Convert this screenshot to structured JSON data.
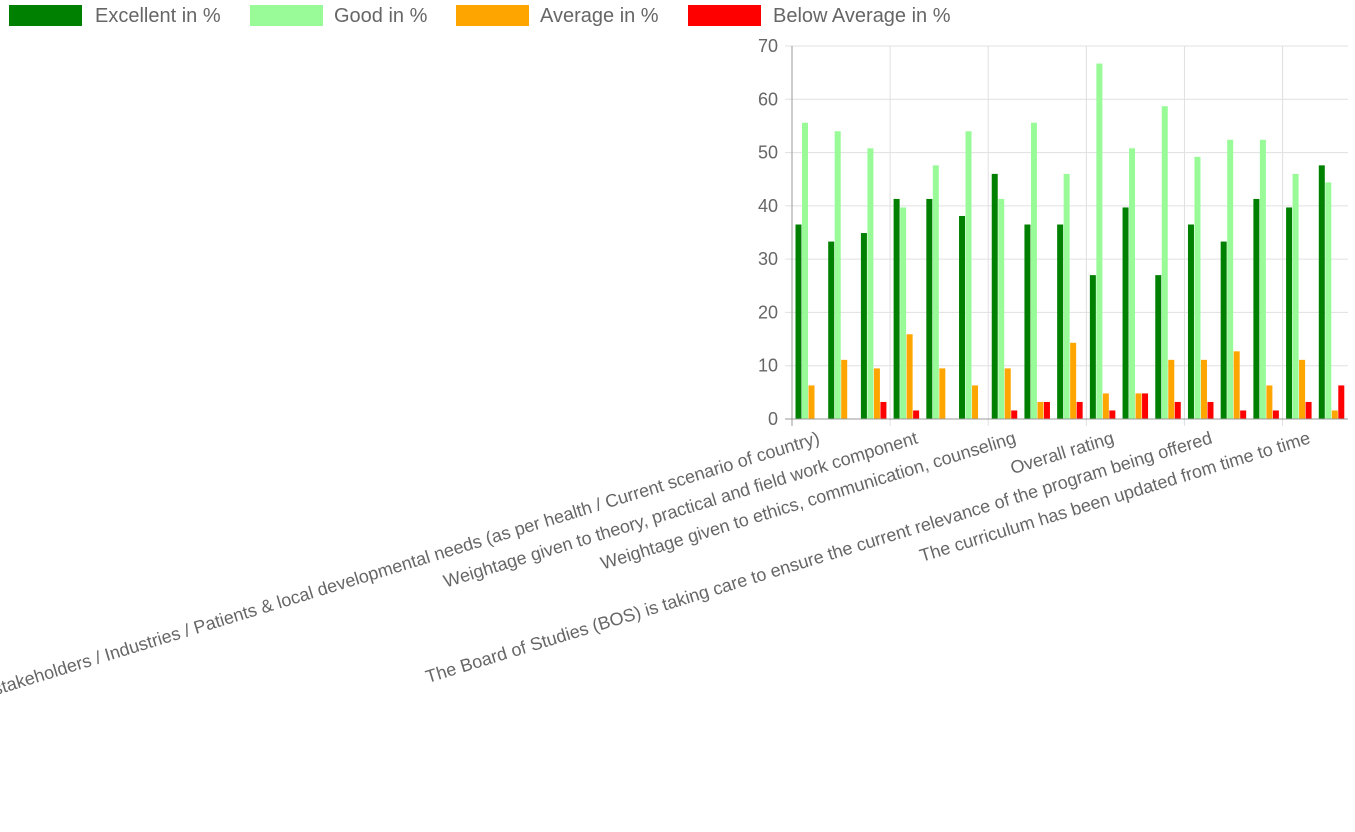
{
  "colors": {
    "excellent": "#008000",
    "good": "#98FB98",
    "average": "#FFA500",
    "below_average": "#FF0000",
    "grid": "#e0e0e0",
    "axis": "#999999",
    "text": "#666666"
  },
  "chart_data": {
    "type": "bar",
    "title": "",
    "xlabel": "",
    "ylabel": "",
    "ylim": [
      0,
      70
    ],
    "yticks": [
      0,
      10,
      20,
      30,
      40,
      50,
      60,
      70
    ],
    "grid": true,
    "legend_position": "top",
    "categories": [
      "Curriculum relevance to needs of stakeholders / Industries / Patients & local developmental needs (as per health / Current scenario of country)",
      "",
      "",
      "Weightage given to theory, practical and field work component",
      "",
      "",
      "Weightage given to ethics, communication, counseling",
      "",
      "",
      "Overall rating",
      "",
      "",
      "The Board of Studies (BOS) is taking care to ensure the current relevance of the program being offered",
      "",
      "",
      "The curriculum has been updated from time to time",
      ""
    ],
    "series": [
      {
        "name": "Excellent in %",
        "color_key": "excellent",
        "values": [
          36.5,
          33.3,
          34.9,
          41.3,
          41.3,
          38.1,
          46.0,
          36.5,
          36.5,
          27.0,
          39.7,
          27.0,
          36.5,
          33.3,
          41.3,
          39.7,
          47.6
        ]
      },
      {
        "name": "Good in %",
        "color_key": "good",
        "values": [
          55.6,
          54.0,
          50.8,
          39.7,
          47.6,
          54.0,
          41.3,
          55.6,
          46.0,
          66.7,
          50.8,
          58.7,
          49.2,
          52.4,
          52.4,
          46.0,
          44.4
        ]
      },
      {
        "name": "Average in %",
        "color_key": "average",
        "values": [
          6.3,
          11.1,
          9.5,
          15.9,
          9.5,
          6.3,
          9.5,
          3.2,
          14.3,
          4.8,
          4.8,
          11.1,
          11.1,
          12.7,
          6.3,
          11.1,
          1.6
        ]
      },
      {
        "name": "Below Average in %",
        "color_key": "below_average",
        "values": [
          0,
          0,
          3.2,
          1.6,
          0,
          0,
          1.6,
          3.2,
          3.2,
          1.6,
          4.8,
          3.2,
          3.2,
          1.6,
          1.6,
          3.2,
          6.3
        ]
      }
    ]
  }
}
